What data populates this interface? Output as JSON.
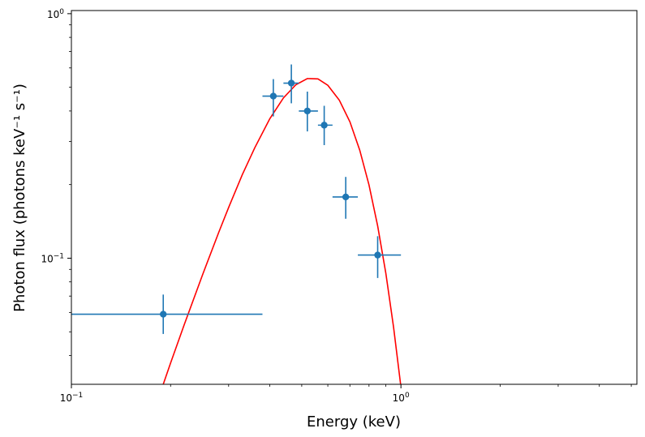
{
  "chart_data": {
    "type": "scatter",
    "xlabel": "Energy (keV)",
    "ylabel": "Photon flux (photons keV⁻¹ s⁻¹)",
    "xscale": "log",
    "yscale": "log",
    "xlim": [
      0.1,
      5.2
    ],
    "ylim": [
      0.0305,
      1.03
    ],
    "x_ticks": [
      {
        "value": 0.1,
        "base": "10",
        "exp": "−1"
      },
      {
        "value": 1.0,
        "base": "10",
        "exp": "0"
      }
    ],
    "y_ticks": [
      {
        "value": 0.1,
        "base": "10",
        "exp": "−1"
      },
      {
        "value": 1.0,
        "base": "10",
        "exp": "0"
      }
    ],
    "grid": false,
    "colors": {
      "data": "#1f77b4",
      "model": "#ff0000"
    },
    "series": [
      {
        "type": "errorbar",
        "points": [
          {
            "x": 0.19,
            "y": 0.059,
            "xerr": [
              0.1,
              0.38
            ],
            "yerr": [
              0.049,
              0.071
            ]
          },
          {
            "x": 0.41,
            "y": 0.46,
            "xerr": [
              0.38,
              0.44
            ],
            "yerr": [
              0.38,
              0.54
            ]
          },
          {
            "x": 0.465,
            "y": 0.52,
            "xerr": [
              0.44,
              0.49
            ],
            "yerr": [
              0.43,
              0.62
            ]
          },
          {
            "x": 0.52,
            "y": 0.4,
            "xerr": [
              0.49,
              0.56
            ],
            "yerr": [
              0.33,
              0.48
            ]
          },
          {
            "x": 0.585,
            "y": 0.35,
            "xerr": [
              0.56,
              0.62
            ],
            "yerr": [
              0.29,
              0.42
            ]
          },
          {
            "x": 0.68,
            "y": 0.178,
            "xerr": [
              0.62,
              0.74
            ],
            "yerr": [
              0.145,
              0.215
            ]
          },
          {
            "x": 0.85,
            "y": 0.103,
            "xerr": [
              0.74,
              1.0
            ],
            "yerr": [
              0.083,
              0.123
            ]
          }
        ]
      },
      {
        "type": "line",
        "x": [
          0.19,
          0.2,
          0.22,
          0.25,
          0.28,
          0.3,
          0.33,
          0.36,
          0.4,
          0.44,
          0.48,
          0.52,
          0.56,
          0.6,
          0.65,
          0.7,
          0.75,
          0.8,
          0.85,
          0.9,
          0.95,
          1.0,
          1.05
        ],
        "y": [
          0.0305,
          0.0373,
          0.0535,
          0.0854,
          0.1275,
          0.1612,
          0.2193,
          0.2829,
          0.3717,
          0.4525,
          0.5124,
          0.5429,
          0.541,
          0.5096,
          0.4429,
          0.3611,
          0.2766,
          0.1994,
          0.1355,
          0.0867,
          0.0522,
          0.0297,
          0.0159
        ]
      }
    ]
  }
}
